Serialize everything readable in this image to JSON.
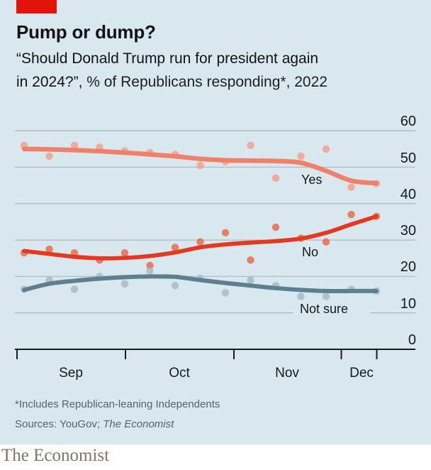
{
  "header": {
    "title": "Pump or dump?",
    "subtitle_line1": "“Should Donald Trump run for president again",
    "subtitle_line2_question": "in 2024?”,",
    "subtitle_line2_rest": " % of Republicans responding*, 2022"
  },
  "footer": {
    "footnote": "*Includes Republican-leaning Independents",
    "sources_prefix": "Sources: YouGov; ",
    "sources_italic": "The Economist",
    "brand": "The Economist"
  },
  "colors": {
    "card_background": "#d9e7ee",
    "brand_red": "#e3120b",
    "gridline": "#aebcc3",
    "axis": "#1a1a1a",
    "text": "#121212",
    "footnote_gray": "#55646d"
  },
  "chart_data": {
    "type": "line",
    "description": "Weekly poll dots with smoothed trend lines; y-axis labels on right; months on x-axis",
    "title": "Pump or dump?",
    "subtitle": "“Should Donald Trump run for president again in 2024?”, % of Republicans responding*, 2022",
    "x_axis": {
      "months": [
        "Sep",
        "Oct",
        "Nov",
        "Dec"
      ],
      "range": [
        "2022-09-01",
        "2022-12-11"
      ]
    },
    "x_approx_dates": [
      "Sep 3",
      "Sep 10",
      "Sep 17",
      "Sep 24",
      "Oct 1",
      "Oct 8",
      "Oct 15",
      "Oct 22",
      "Oct 29",
      "Nov 5",
      "Nov 12",
      "Nov 19",
      "Nov 26",
      "Dec 3",
      "Dec 10"
    ],
    "ylim": [
      0,
      60
    ],
    "yticks": [
      0,
      10,
      20,
      30,
      40,
      50,
      60
    ],
    "grid": "horizontal gridlines only",
    "legend": "inline series labels near line ends",
    "series": [
      {
        "name": "Yes",
        "line_color": "#f0806a",
        "dot_color": "#f3a18b",
        "points": [
          56,
          53,
          56,
          55.5,
          54.5,
          54,
          53.5,
          50.5,
          51.5,
          56,
          47,
          53,
          55,
          44.5,
          45.5
        ],
        "trend": [
          55,
          54.9,
          54.7,
          54.4,
          54,
          53.5,
          53,
          52.3,
          51.9,
          51.8,
          51.7,
          51.2,
          49,
          46.3,
          45.6
        ]
      },
      {
        "name": "No",
        "line_color": "#e53823",
        "dot_color": "#ea6b4e",
        "points": [
          26.5,
          27.5,
          26.5,
          24.5,
          26.5,
          23,
          28,
          29.5,
          32,
          24.5,
          33.5,
          30.5,
          29.5,
          37,
          36.5
        ],
        "trend": [
          27,
          26.2,
          25.4,
          25,
          25.1,
          25.6,
          26.6,
          28,
          28.8,
          29.3,
          29.7,
          30.4,
          32,
          34.3,
          36.5
        ]
      },
      {
        "name": "Not sure",
        "line_color": "#5e7f90",
        "dot_color": "#a3bcca",
        "points": [
          16.5,
          19,
          16.5,
          20,
          18,
          21.5,
          17.5,
          19.5,
          15.5,
          19,
          17.5,
          14.5,
          14.5,
          16.5,
          16
        ],
        "trend": [
          16.3,
          18,
          18.8,
          19.4,
          19.8,
          20,
          19.9,
          19,
          18.2,
          17.5,
          16.8,
          16.3,
          16,
          16,
          16
        ]
      }
    ]
  }
}
